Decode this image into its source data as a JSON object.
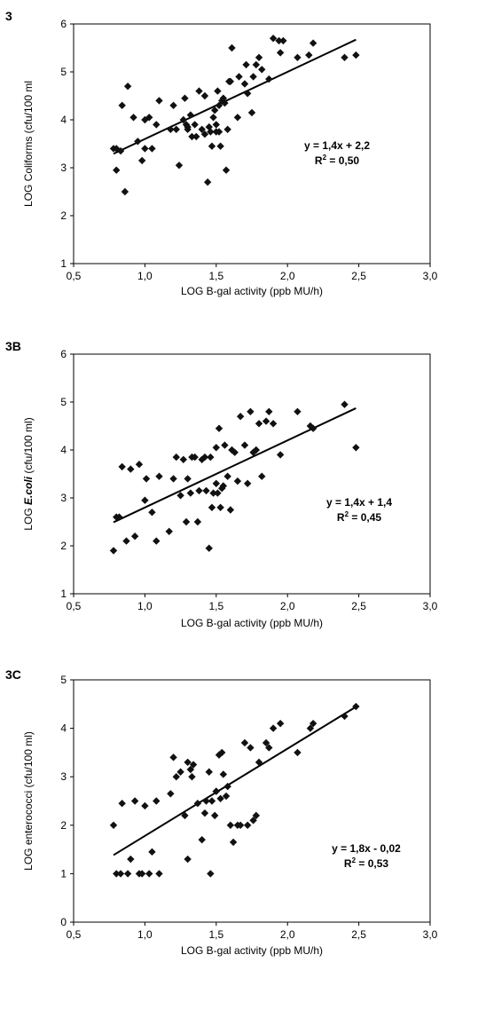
{
  "chart_data": [
    {
      "type": "scatter",
      "panel_label": "3",
      "xlabel": "LOG B-gal activity (ppb MU/h)",
      "ylabel": "LOG Coliforms (cfu/100 ml",
      "ylabel_parts": [],
      "xlim": [
        0.5,
        3.0
      ],
      "ylim": [
        1,
        6
      ],
      "x_ticks": [
        "0,5",
        "1,0",
        "1,5",
        "2,0",
        "2,5",
        "3,0"
      ],
      "y_ticks": [
        "1",
        "2",
        "3",
        "4",
        "5",
        "6"
      ],
      "equation": "y = 1,4x + 2,2",
      "r2_label": "R",
      "r2_sup": "2",
      "r2_value": " = 0,50",
      "trendline": {
        "slope": 1.4,
        "intercept": 2.2
      },
      "x": [
        0.78,
        0.8,
        0.8,
        0.83,
        0.84,
        0.86,
        0.88,
        0.92,
        0.95,
        0.98,
        1.0,
        1.0,
        1.03,
        1.05,
        1.08,
        1.1,
        1.18,
        1.2,
        1.22,
        1.24,
        1.27,
        1.28,
        1.29,
        1.3,
        1.3,
        1.32,
        1.33,
        1.35,
        1.36,
        1.38,
        1.4,
        1.42,
        1.42,
        1.44,
        1.45,
        1.46,
        1.47,
        1.48,
        1.49,
        1.5,
        1.5,
        1.51,
        1.52,
        1.52,
        1.53,
        1.54,
        1.55,
        1.56,
        1.57,
        1.58,
        1.59,
        1.6,
        1.61,
        1.65,
        1.66,
        1.7,
        1.71,
        1.72,
        1.75,
        1.76,
        1.78,
        1.8,
        1.82,
        1.87,
        1.9,
        1.94,
        1.95,
        1.97,
        2.07,
        2.15,
        2.18,
        2.4,
        2.48
      ],
      "y": [
        3.4,
        2.95,
        3.4,
        3.35,
        4.3,
        2.5,
        4.7,
        4.05,
        3.55,
        3.15,
        4.0,
        3.4,
        4.05,
        3.4,
        3.9,
        4.4,
        3.8,
        4.3,
        3.8,
        3.05,
        4.0,
        4.45,
        3.9,
        3.85,
        3.8,
        4.1,
        3.65,
        3.9,
        3.65,
        4.6,
        3.8,
        3.7,
        4.5,
        2.7,
        3.85,
        3.75,
        3.45,
        4.05,
        4.2,
        3.9,
        3.75,
        4.6,
        3.75,
        4.3,
        3.45,
        4.4,
        4.45,
        4.35,
        2.95,
        3.8,
        4.8,
        4.8,
        5.5,
        4.05,
        4.9,
        4.75,
        5.15,
        4.55,
        4.15,
        4.9,
        5.15,
        5.3,
        5.05,
        4.85,
        5.7,
        5.65,
        5.4,
        5.65,
        5.3,
        5.35,
        5.6,
        5.3,
        5.35
      ]
    },
    {
      "type": "scatter",
      "panel_label": "3B",
      "xlabel": "LOG B-gal activity (ppb MU/h)",
      "ylabel": "",
      "ylabel_parts": [
        "LOG ",
        "E.coli",
        "  (cfu/100 ml)"
      ],
      "xlim": [
        0.5,
        3.0
      ],
      "ylim": [
        1,
        6
      ],
      "x_ticks": [
        "0,5",
        "1,0",
        "1,5",
        "2,0",
        "2,5",
        "3,0"
      ],
      "y_ticks": [
        "1",
        "2",
        "3",
        "4",
        "5",
        "6"
      ],
      "equation": "y = 1,4x + 1,4",
      "r2_label": "R",
      "r2_sup": "2",
      "r2_value": " = 0,45",
      "trendline": {
        "slope": 1.4,
        "intercept": 1.4
      },
      "x": [
        0.78,
        0.8,
        0.82,
        0.84,
        0.87,
        0.9,
        0.93,
        0.96,
        1.0,
        1.01,
        1.05,
        1.08,
        1.1,
        1.17,
        1.2,
        1.22,
        1.25,
        1.27,
        1.29,
        1.3,
        1.32,
        1.33,
        1.35,
        1.37,
        1.38,
        1.4,
        1.42,
        1.43,
        1.45,
        1.46,
        1.47,
        1.48,
        1.5,
        1.5,
        1.51,
        1.52,
        1.53,
        1.54,
        1.55,
        1.56,
        1.58,
        1.6,
        1.61,
        1.63,
        1.65,
        1.67,
        1.7,
        1.72,
        1.74,
        1.76,
        1.78,
        1.8,
        1.82,
        1.85,
        1.87,
        1.9,
        1.95,
        2.07,
        2.16,
        2.18,
        2.4,
        2.48
      ],
      "y": [
        1.9,
        2.6,
        2.6,
        3.65,
        2.1,
        3.6,
        2.2,
        3.7,
        2.95,
        3.4,
        2.7,
        2.1,
        3.45,
        2.3,
        3.4,
        3.85,
        3.05,
        3.8,
        2.5,
        3.4,
        3.1,
        3.85,
        3.85,
        2.5,
        3.15,
        3.8,
        3.85,
        3.15,
        1.95,
        3.85,
        2.8,
        3.1,
        3.3,
        4.05,
        3.1,
        4.45,
        2.8,
        3.2,
        3.25,
        4.1,
        3.45,
        2.75,
        4.0,
        3.95,
        3.35,
        4.7,
        4.1,
        3.3,
        4.8,
        3.95,
        4.0,
        4.55,
        3.45,
        4.6,
        4.8,
        4.55,
        3.9,
        4.8,
        4.5,
        4.45,
        4.95,
        4.05
      ]
    },
    {
      "type": "scatter",
      "panel_label": "3C",
      "xlabel": "LOG B-gal activity (ppb MU/h)",
      "ylabel": "LOG enterococci (cfu/100 ml)",
      "ylabel_parts": [],
      "xlim": [
        0.5,
        3.0
      ],
      "ylim": [
        0,
        5
      ],
      "x_ticks": [
        "0,5",
        "1,0",
        "1,5",
        "2,0",
        "2,5",
        "3,0"
      ],
      "y_ticks": [
        "0",
        "1",
        "2",
        "3",
        "4",
        "5"
      ],
      "equation": "y = 1,8x - 0,02",
      "r2_label": "R",
      "r2_sup": "2",
      "r2_value": " = 0,53",
      "trendline": {
        "slope": 1.8,
        "intercept": -0.02
      },
      "x": [
        0.78,
        0.8,
        0.83,
        0.84,
        0.88,
        0.9,
        0.93,
        0.96,
        0.98,
        1.0,
        1.03,
        1.05,
        1.08,
        1.1,
        1.18,
        1.2,
        1.22,
        1.25,
        1.28,
        1.3,
        1.3,
        1.32,
        1.33,
        1.34,
        1.37,
        1.4,
        1.42,
        1.43,
        1.45,
        1.46,
        1.47,
        1.49,
        1.5,
        1.5,
        1.52,
        1.53,
        1.54,
        1.55,
        1.57,
        1.58,
        1.6,
        1.62,
        1.65,
        1.67,
        1.7,
        1.72,
        1.74,
        1.76,
        1.78,
        1.8,
        1.85,
        1.87,
        1.9,
        1.95,
        2.07,
        2.16,
        2.18,
        2.4,
        2.48
      ],
      "y": [
        2.0,
        1.0,
        1.0,
        2.45,
        1.0,
        1.3,
        2.5,
        1.0,
        1.0,
        2.4,
        1.0,
        1.45,
        2.5,
        1.0,
        2.65,
        3.4,
        3.0,
        3.1,
        2.2,
        3.3,
        1.3,
        3.15,
        3.0,
        3.25,
        2.45,
        1.7,
        2.25,
        2.5,
        3.1,
        1.0,
        2.5,
        2.2,
        2.7,
        2.7,
        3.45,
        2.55,
        3.5,
        3.05,
        2.6,
        2.8,
        2.0,
        1.65,
        2.0,
        2.0,
        3.7,
        2.0,
        3.6,
        2.1,
        2.2,
        3.3,
        3.7,
        3.6,
        4.0,
        4.1,
        3.5,
        4.0,
        4.1,
        4.25,
        4.45
      ]
    }
  ]
}
